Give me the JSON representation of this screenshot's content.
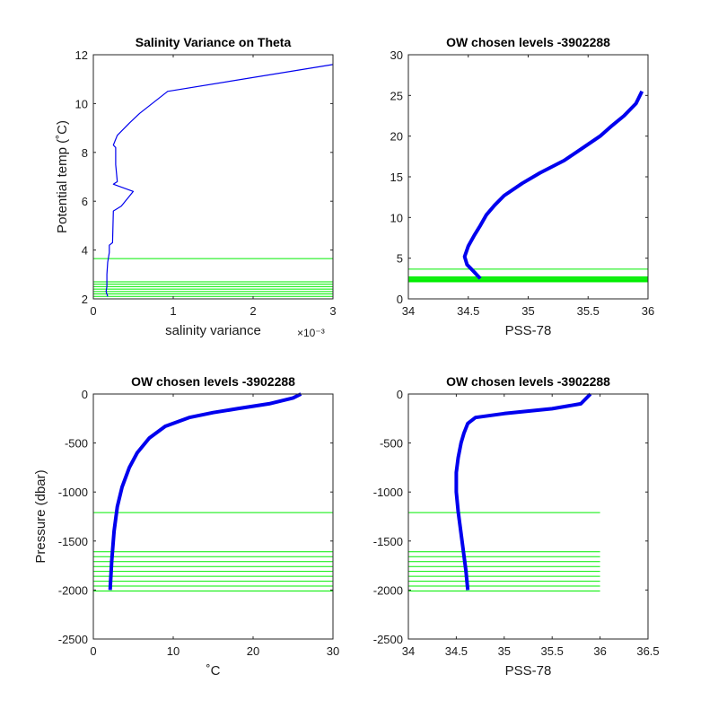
{
  "colors": {
    "profile": "#0000ee",
    "levels": "#00ee00",
    "axis": "#262626"
  },
  "chart_data": [
    {
      "type": "line",
      "title": "Salinity Variance on Theta",
      "xlabel": "salinity variance",
      "x_exponent": "×10⁻³",
      "ylabel": "Potential temp (˚C)",
      "xlim": [
        0,
        0.003
      ],
      "ylim": [
        2,
        12
      ],
      "xticks": [
        0,
        0.001,
        0.002,
        0.003
      ],
      "xtick_labels": [
        "0",
        "1",
        "2",
        "3"
      ],
      "yticks": [
        2,
        4,
        6,
        8,
        10,
        12
      ],
      "ytick_labels": [
        "2",
        "4",
        "6",
        "8",
        "10",
        "12"
      ],
      "series": [
        {
          "x": [
            0.00018,
            0.00016,
            0.00017,
            0.00017,
            0.00017,
            0.00018,
            0.0002,
            0.0002,
            0.00024,
            0.00025,
            0.00035,
            0.0005,
            0.00025,
            0.0003,
            0.00028,
            0.00028,
            0.00025,
            0.0003,
            0.00045,
            0.00058,
            0.00093,
            0.003
          ],
          "y": [
            2.1,
            2.3,
            2.5,
            2.7,
            3.0,
            3.5,
            3.9,
            4.2,
            4.3,
            5.6,
            5.8,
            6.4,
            6.7,
            6.8,
            7.5,
            8.2,
            8.3,
            8.7,
            9.2,
            9.6,
            10.5,
            11.6
          ]
        }
      ],
      "level_lines": [
        2.1,
        2.2,
        2.3,
        2.4,
        2.5,
        2.6,
        2.7,
        3.65
      ],
      "level_xrange": [
        0,
        0.003
      ]
    },
    {
      "type": "line",
      "title": "OW chosen levels -3902288",
      "xlabel": "PSS-78",
      "ylabel": "",
      "xlim": [
        34,
        36
      ],
      "ylim": [
        0,
        30
      ],
      "xticks": [
        34,
        34.5,
        35,
        35.5,
        36
      ],
      "xtick_labels": [
        "34",
        "34.5",
        "35",
        "35.5",
        "36"
      ],
      "yticks": [
        0,
        5,
        10,
        15,
        20,
        25,
        30
      ],
      "ytick_labels": [
        "0",
        "5",
        "10",
        "15",
        "20",
        "25",
        "30"
      ],
      "series": [
        {
          "x": [
            34.6,
            34.55,
            34.49,
            34.47,
            34.5,
            34.55,
            34.6,
            34.65,
            34.72,
            34.8,
            34.95,
            35.1,
            35.3,
            35.45,
            35.6,
            35.7,
            35.8,
            35.9,
            35.95
          ],
          "y": [
            2.5,
            3.3,
            4.2,
            5.2,
            6.5,
            7.8,
            9.0,
            10.3,
            11.5,
            12.7,
            14.2,
            15.5,
            17.0,
            18.5,
            20.0,
            21.3,
            22.5,
            24.0,
            25.5
          ]
        }
      ],
      "level_lines": [
        2.1,
        2.2,
        2.3,
        2.4,
        2.5,
        2.6,
        2.7,
        3.65
      ],
      "level_xrange": [
        34,
        36
      ]
    },
    {
      "type": "line",
      "title": "OW chosen levels -3902288",
      "xlabel": "˚C",
      "ylabel": "Pressure (dbar)",
      "xlim": [
        0,
        30
      ],
      "ylim": [
        -2500,
        0
      ],
      "xticks": [
        0,
        10,
        20,
        30
      ],
      "xtick_labels": [
        "0",
        "10",
        "20",
        "30"
      ],
      "yticks": [
        -2500,
        -2000,
        -1500,
        -1000,
        -500,
        0
      ],
      "ytick_labels": [
        "-2500",
        "-2000",
        "-1500",
        "-1000",
        "-500",
        "0"
      ],
      "series": [
        {
          "x": [
            2.1,
            2.3,
            2.6,
            3.0,
            3.6,
            4.5,
            5.5,
            7.0,
            9.0,
            12.0,
            15.0,
            18.0,
            22.0,
            25.0,
            26.0
          ],
          "y": [
            -2000,
            -1700,
            -1400,
            -1150,
            -950,
            -750,
            -600,
            -450,
            -330,
            -240,
            -190,
            -150,
            -100,
            -40,
            0
          ]
        }
      ],
      "level_lines": [
        -1210,
        -1610,
        -1660,
        -1710,
        -1760,
        -1810,
        -1860,
        -1910,
        -1960,
        -2010
      ],
      "level_xrange": [
        0,
        30
      ]
    },
    {
      "type": "line",
      "title": "OW chosen levels -3902288",
      "xlabel": "PSS-78",
      "ylabel": "",
      "xlim": [
        34,
        36.5
      ],
      "ylim": [
        -2500,
        0
      ],
      "xticks": [
        34,
        34.5,
        35,
        35.5,
        36,
        36.5
      ],
      "xtick_labels": [
        "34",
        "34.5",
        "35",
        "35.5",
        "36",
        "36.5"
      ],
      "yticks": [
        -2500,
        -2000,
        -1500,
        -1000,
        -500,
        0
      ],
      "ytick_labels": [
        "-2500",
        "-2000",
        "-1500",
        "-1000",
        "-500",
        "0"
      ],
      "series": [
        {
          "x": [
            34.62,
            34.6,
            34.56,
            34.52,
            34.5,
            34.5,
            34.52,
            34.55,
            34.58,
            34.62,
            34.7,
            35.0,
            35.5,
            35.8,
            35.9
          ],
          "y": [
            -2000,
            -1800,
            -1500,
            -1200,
            -1000,
            -800,
            -650,
            -500,
            -400,
            -300,
            -240,
            -200,
            -150,
            -100,
            0
          ]
        }
      ],
      "level_lines": [
        -1210,
        -1610,
        -1660,
        -1710,
        -1760,
        -1810,
        -1860,
        -1910,
        -1960,
        -2010
      ],
      "level_xrange": [
        34,
        36
      ]
    }
  ]
}
